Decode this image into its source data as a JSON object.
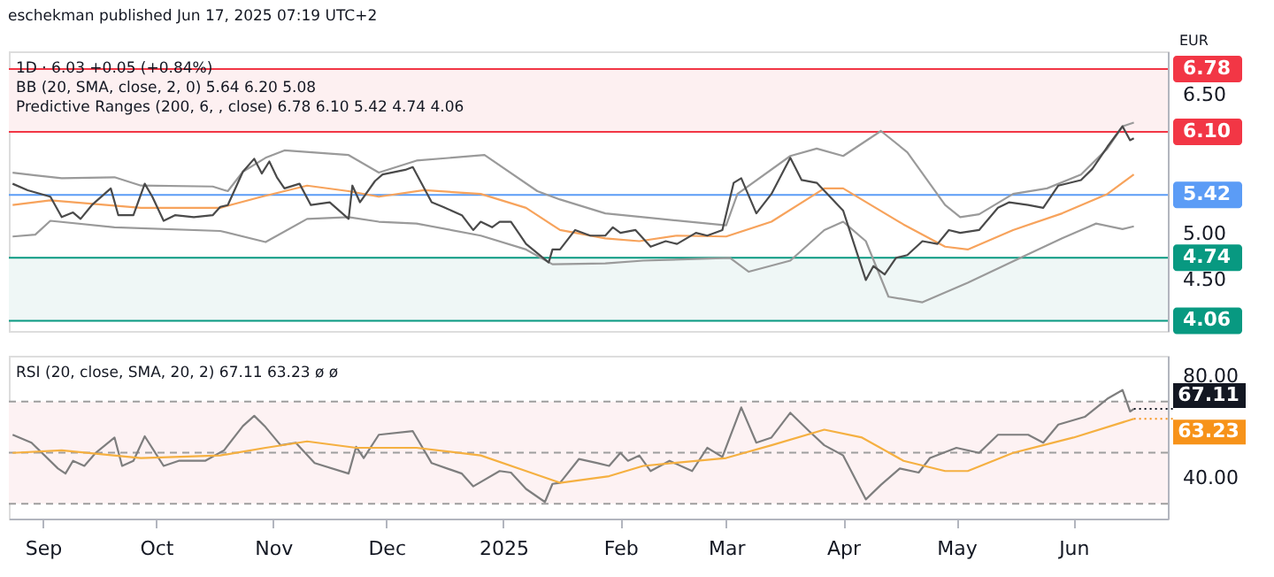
{
  "chart_data": [
    {
      "type": "line",
      "title": "eschekman published Jun 17, 2025 07:19 UTC+2",
      "ylabel": "EUR",
      "annotations": [
        "1D · 6.03 +0.05 (+0.84%)",
        "BB (20, SMA, close, 2, 0) 5.64 6.20 5.08",
        "Predictive Ranges (200, 6, , close) 6.78 6.10 5.42 4.74 4.06"
      ],
      "xlim": [
        "2024-08-23",
        "2025-06-26"
      ],
      "ylim": [
        3.95,
        6.97
      ],
      "yticks": [
        {
          "value": 4.5,
          "label": "4.50"
        },
        {
          "value": 5,
          "label": "5.00"
        },
        {
          "value": 6.5,
          "label": "6.50"
        }
      ],
      "tick_labels": "y",
      "grid": false,
      "marker": "none",
      "line_style": "solid",
      "bands": [
        {
          "axis": "y",
          "from": 6.1,
          "to": 6.78,
          "color": "#fdf0f1"
        },
        {
          "axis": "y",
          "from": 4.06,
          "to": 4.74,
          "color": "#eff7f6"
        }
      ],
      "ref_lines": [
        {
          "axis": "y",
          "value": 6.78,
          "label": "6.78",
          "color": "#f23645"
        },
        {
          "axis": "y",
          "value": 6.1,
          "label": "6.10",
          "color": "#f23645"
        },
        {
          "axis": "y",
          "value": 5.42,
          "label": "5.42",
          "color": "#5b9cf6"
        },
        {
          "axis": "y",
          "value": 4.74,
          "label": "4.74",
          "color": "#089981"
        },
        {
          "axis": "y",
          "value": 4.06,
          "label": "4.06",
          "color": "#089981"
        }
      ],
      "series": [
        {
          "color": "#9a9a9a",
          "x": [
            "2024-08-24",
            "2024-08-30",
            "2024-09-06",
            "2024-09-20",
            "2024-09-27",
            "2024-10-16",
            "2024-10-20",
            "2024-10-24",
            "2024-10-30",
            "2024-11-04",
            "2024-11-21",
            "2024-11-29",
            "2024-12-09",
            "2024-12-27",
            "2025-01-10",
            "2025-01-16",
            "2025-01-28",
            "2025-02-07",
            "2025-03-01",
            "2025-03-04",
            "2025-03-18",
            "2025-03-25",
            "2025-04-01",
            "2025-04-11",
            "2025-04-18",
            "2025-04-28",
            "2025-05-02",
            "2025-05-07",
            "2025-05-16",
            "2025-05-25",
            "2025-06-03",
            "2025-06-10",
            "2025-06-14",
            "2025-06-17"
          ],
          "values": [
            5.66,
            5.63,
            5.6,
            5.61,
            5.52,
            5.51,
            5.46,
            5.67,
            5.82,
            5.9,
            5.85,
            5.66,
            5.79,
            5.85,
            5.46,
            5.37,
            5.22,
            5.18,
            5.09,
            5.43,
            5.84,
            5.92,
            5.84,
            6.11,
            5.88,
            5.31,
            5.18,
            5.21,
            5.43,
            5.49,
            5.64,
            5.92,
            6.16,
            6.2
          ]
        },
        {
          "color": "#9a9a9a",
          "x": [
            "2024-08-24",
            "2024-08-30",
            "2024-09-03",
            "2024-09-20",
            "2024-10-18",
            "2024-10-30",
            "2024-11-10",
            "2024-11-21",
            "2024-11-29",
            "2024-12-09",
            "2024-12-26",
            "2025-01-07",
            "2025-01-14",
            "2025-01-28",
            "2025-02-07",
            "2025-03-02",
            "2025-03-07",
            "2025-03-18",
            "2025-03-27",
            "2025-04-01",
            "2025-04-07",
            "2025-04-13",
            "2025-04-22",
            "2025-05-04",
            "2025-05-18",
            "2025-05-29",
            "2025-06-07",
            "2025-06-14",
            "2025-06-17"
          ],
          "values": [
            4.97,
            4.99,
            5.14,
            5.07,
            5.03,
            4.91,
            5.16,
            5.18,
            5.13,
            5.11,
            4.98,
            4.83,
            4.67,
            4.68,
            4.71,
            4.74,
            4.59,
            4.71,
            5.04,
            5.13,
            4.92,
            4.32,
            4.26,
            4.47,
            4.74,
            4.95,
            5.11,
            5.05,
            5.08
          ]
        },
        {
          "color": "#f7a35c",
          "x": [
            "2024-08-24",
            "2024-09-03",
            "2024-09-27",
            "2024-10-18",
            "2024-10-29",
            "2024-11-10",
            "2024-11-21",
            "2024-11-29",
            "2024-12-11",
            "2024-12-26",
            "2025-01-07",
            "2025-01-16",
            "2025-01-28",
            "2025-02-06",
            "2025-02-16",
            "2025-03-01",
            "2025-03-13",
            "2025-03-27",
            "2025-04-01",
            "2025-04-17",
            "2025-04-28",
            "2025-05-04",
            "2025-05-16",
            "2025-05-29",
            "2025-06-10",
            "2025-06-17"
          ],
          "values": [
            5.31,
            5.36,
            5.28,
            5.28,
            5.4,
            5.52,
            5.46,
            5.4,
            5.47,
            5.43,
            5.28,
            5.04,
            4.95,
            4.92,
            4.98,
            4.97,
            5.13,
            5.49,
            5.49,
            5.1,
            4.86,
            4.83,
            5.04,
            5.22,
            5.43,
            5.64
          ]
        },
        {
          "color": "#4a4a4a",
          "x": [
            "2024-08-24",
            "2024-08-28",
            "2024-09-03",
            "2024-09-06",
            "2024-09-09",
            "2024-09-11",
            "2024-09-14",
            "2024-09-19",
            "2024-09-21",
            "2024-09-25",
            "2024-09-28",
            "2024-09-30",
            "2024-10-03",
            "2024-10-06",
            "2024-10-11",
            "2024-10-16",
            "2024-10-18",
            "2024-10-20",
            "2024-10-24",
            "2024-10-27",
            "2024-10-29",
            "2024-10-31",
            "2024-11-02",
            "2024-11-04",
            "2024-11-08",
            "2024-11-11",
            "2024-11-16",
            "2024-11-21",
            "2024-11-22",
            "2024-11-24",
            "2024-11-28",
            "2024-11-30",
            "2024-12-06",
            "2024-12-08",
            "2024-12-13",
            "2024-12-16",
            "2024-12-21",
            "2024-12-24",
            "2024-12-26",
            "2024-12-29",
            "2024-12-31",
            "2025-01-03",
            "2025-01-07",
            "2025-01-13",
            "2025-01-14",
            "2025-01-16",
            "2025-01-20",
            "2025-01-24",
            "2025-01-28",
            "2025-01-30",
            "2025-02-01",
            "2025-02-05",
            "2025-02-09",
            "2025-02-13",
            "2025-02-16",
            "2025-02-21",
            "2025-02-24",
            "2025-02-28",
            "2025-03-03",
            "2025-03-05",
            "2025-03-09",
            "2025-03-13",
            "2025-03-18",
            "2025-03-21",
            "2025-03-25",
            "2025-04-01",
            "2025-04-07",
            "2025-04-09",
            "2025-04-12",
            "2025-04-15",
            "2025-04-18",
            "2025-04-22",
            "2025-04-26",
            "2025-04-29",
            "2025-05-02",
            "2025-05-07",
            "2025-05-12",
            "2025-05-15",
            "2025-05-20",
            "2025-05-24",
            "2025-05-28",
            "2025-06-03",
            "2025-06-06",
            "2025-06-10",
            "2025-06-14",
            "2025-06-16",
            "2025-06-17"
          ],
          "values": [
            5.54,
            5.47,
            5.4,
            5.18,
            5.23,
            5.16,
            5.31,
            5.49,
            5.2,
            5.2,
            5.54,
            5.4,
            5.14,
            5.2,
            5.18,
            5.2,
            5.29,
            5.31,
            5.67,
            5.81,
            5.65,
            5.78,
            5.61,
            5.49,
            5.54,
            5.31,
            5.34,
            5.16,
            5.52,
            5.34,
            5.57,
            5.64,
            5.69,
            5.72,
            5.34,
            5.29,
            5.2,
            5.04,
            5.13,
            5.07,
            5.13,
            5.13,
            4.89,
            4.69,
            4.83,
            4.83,
            5.04,
            4.98,
            4.98,
            5.07,
            5.01,
            5.04,
            4.86,
            4.92,
            4.89,
            5.01,
            4.98,
            5.04,
            5.55,
            5.6,
            5.22,
            5.43,
            5.82,
            5.58,
            5.55,
            5.25,
            4.5,
            4.65,
            4.56,
            4.74,
            4.77,
            4.92,
            4.89,
            5.04,
            5.01,
            5.04,
            5.28,
            5.34,
            5.31,
            5.28,
            5.52,
            5.58,
            5.7,
            5.94,
            6.16,
            6.01,
            6.03
          ]
        }
      ]
    },
    {
      "type": "line",
      "annotations": [
        "RSI (20, close, SMA, 20, 2) 67.11 63.23 ø ø",
        {
          "text": "67.11",
          "x": "2025-06-17",
          "y": 67.11
        },
        {
          "text": "63.23",
          "x": "2025-06-17",
          "y": 63.23
        }
      ],
      "xlim": [
        "2024-08-23",
        "2025-06-26"
      ],
      "ylim": [
        24.2,
        87.9
      ],
      "xticks": [
        {
          "value": "2024-09-01",
          "label": "Sep"
        },
        {
          "value": "2024-10-01",
          "label": "Oct"
        },
        {
          "value": "2024-11-01",
          "label": "Nov"
        },
        {
          "value": "2024-12-01",
          "label": "Dec"
        },
        {
          "value": "2025-01-01",
          "label": "2025"
        },
        {
          "value": "2025-02-01",
          "label": "Feb"
        },
        {
          "value": "2025-03-01",
          "label": "Mar"
        },
        {
          "value": "2025-04-01",
          "label": "Apr"
        },
        {
          "value": "2025-05-01",
          "label": "May"
        },
        {
          "value": "2025-06-01",
          "label": "Jun"
        }
      ],
      "yticks": [
        {
          "value": 40,
          "label": "40.00"
        },
        {
          "value": 80,
          "label": "80.00"
        }
      ],
      "grid": false,
      "marker": "none",
      "line_style": "solid",
      "bands": [
        {
          "axis": "y",
          "from": 30,
          "to": 70,
          "color": "#fdf2f3"
        }
      ],
      "ref_lines": [
        {
          "axis": "y",
          "value": 70,
          "color": "#9e9e9e",
          "line_style": "dashed"
        },
        {
          "axis": "y",
          "value": 50,
          "color": "#9e9e9e",
          "line_style": "dashed"
        },
        {
          "axis": "y",
          "value": 30,
          "color": "#9e9e9e",
          "line_style": "dashed"
        }
      ],
      "series": [
        {
          "color": "#7e7e7e",
          "x": [
            "2024-08-24",
            "2024-08-29",
            "2024-09-05",
            "2024-09-07",
            "2024-09-09",
            "2024-09-12",
            "2024-09-15",
            "2024-09-20",
            "2024-09-22",
            "2024-09-25",
            "2024-09-28",
            "2024-10-03",
            "2024-10-07",
            "2024-10-14",
            "2024-10-19",
            "2024-10-24",
            "2024-10-27",
            "2024-10-30",
            "2024-11-03",
            "2024-11-07",
            "2024-11-12",
            "2024-11-21",
            "2024-11-23",
            "2024-11-25",
            "2024-11-29",
            "2024-12-08",
            "2024-12-13",
            "2024-12-21",
            "2024-12-24",
            "2024-12-31",
            "2025-01-03",
            "2025-01-07",
            "2025-01-12",
            "2025-01-14",
            "2025-01-16",
            "2025-01-21",
            "2025-01-26",
            "2025-01-29",
            "2025-02-01",
            "2025-02-03",
            "2025-02-06",
            "2025-02-09",
            "2025-02-14",
            "2025-02-20",
            "2025-02-24",
            "2025-02-28",
            "2025-03-05",
            "2025-03-09",
            "2025-03-13",
            "2025-03-18",
            "2025-03-23",
            "2025-03-27",
            "2025-04-01",
            "2025-04-07",
            "2025-04-11",
            "2025-04-16",
            "2025-04-21",
            "2025-04-24",
            "2025-05-01",
            "2025-05-07",
            "2025-05-12",
            "2025-05-20",
            "2025-05-24",
            "2025-05-28",
            "2025-06-04",
            "2025-06-10",
            "2025-06-14",
            "2025-06-16",
            "2025-06-17"
          ],
          "values": [
            57.0,
            53.9,
            43.8,
            41.8,
            46.8,
            44.8,
            49.9,
            55.9,
            44.8,
            46.8,
            56.4,
            44.8,
            46.8,
            46.8,
            50.9,
            60.4,
            64.4,
            60.0,
            52.9,
            53.9,
            45.9,
            41.8,
            52.3,
            47.9,
            57.0,
            58.4,
            45.9,
            41.8,
            36.8,
            42.8,
            42.2,
            35.8,
            30.7,
            37.8,
            38.2,
            47.5,
            45.9,
            44.8,
            49.9,
            46.8,
            48.9,
            42.8,
            46.8,
            42.8,
            51.9,
            48.3,
            67.7,
            53.9,
            55.9,
            65.6,
            58.4,
            52.9,
            48.9,
            31.7,
            37.4,
            43.8,
            42.2,
            47.9,
            51.9,
            49.9,
            57.0,
            57.0,
            53.9,
            61.0,
            64.0,
            71.1,
            74.5,
            66.1,
            67.11
          ]
        },
        {
          "color": "#f5b041",
          "x": [
            "2024-08-24",
            "2024-09-06",
            "2024-09-27",
            "2024-10-18",
            "2024-10-30",
            "2024-11-10",
            "2024-11-23",
            "2024-12-09",
            "2024-12-26",
            "2025-01-07",
            "2025-01-16",
            "2025-01-29",
            "2025-02-07",
            "2025-03-01",
            "2025-03-13",
            "2025-03-27",
            "2025-04-06",
            "2025-04-17",
            "2025-04-28",
            "2025-05-04",
            "2025-05-16",
            "2025-06-01",
            "2025-06-17"
          ],
          "values": [
            49.9,
            50.9,
            47.9,
            48.9,
            51.9,
            54.4,
            51.9,
            51.9,
            48.9,
            42.8,
            38.2,
            40.8,
            44.8,
            47.9,
            52.9,
            59.0,
            55.9,
            46.8,
            42.8,
            42.8,
            49.9,
            55.9,
            63.23
          ]
        }
      ]
    }
  ]
}
